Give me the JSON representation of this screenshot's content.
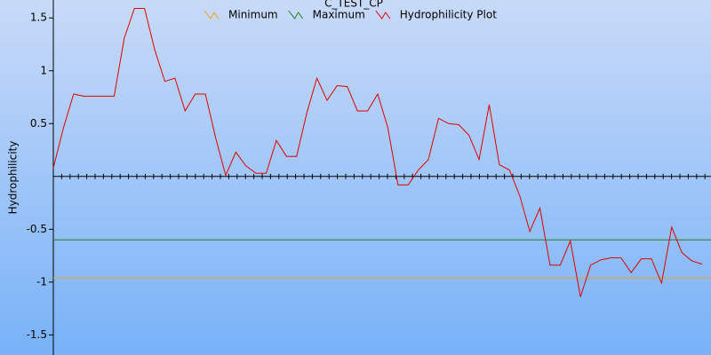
{
  "chart_data": {
    "type": "line",
    "title": "C_TEST_CP",
    "y_label": "Hydrophilicity",
    "ylim": [
      -1.69,
      1.67
    ],
    "yticks": [
      1.5,
      1,
      0.5,
      -0.5,
      -1,
      -1.5
    ],
    "series": [
      {
        "name": "Minimum",
        "color": "#f0a020",
        "value": -0.96
      },
      {
        "name": "Maximum",
        "color": "#208020",
        "value": -0.6
      },
      {
        "name": "Hydrophilicity Plot",
        "color": "#e00000",
        "values": [
          0.08,
          0.46,
          0.78,
          0.76,
          0.76,
          0.76,
          0.76,
          1.31,
          1.59,
          1.59,
          1.2,
          0.9,
          0.93,
          0.62,
          0.78,
          0.78,
          0.37,
          0.01,
          0.23,
          0.1,
          0.03,
          0.03,
          0.34,
          0.19,
          0.19,
          0.6,
          0.93,
          0.72,
          0.86,
          0.85,
          0.62,
          0.62,
          0.78,
          0.46,
          -0.08,
          -0.08,
          0.06,
          0.16,
          0.55,
          0.5,
          0.49,
          0.39,
          0.16,
          0.68,
          0.11,
          0.06,
          -0.18,
          -0.52,
          -0.3,
          -0.84,
          -0.84,
          -0.61,
          -1.14,
          -0.84,
          -0.79,
          -0.77,
          -0.77,
          -0.91,
          -0.78,
          -0.78,
          -1.01,
          -0.48,
          -0.72,
          -0.8,
          -0.83
        ]
      }
    ]
  }
}
